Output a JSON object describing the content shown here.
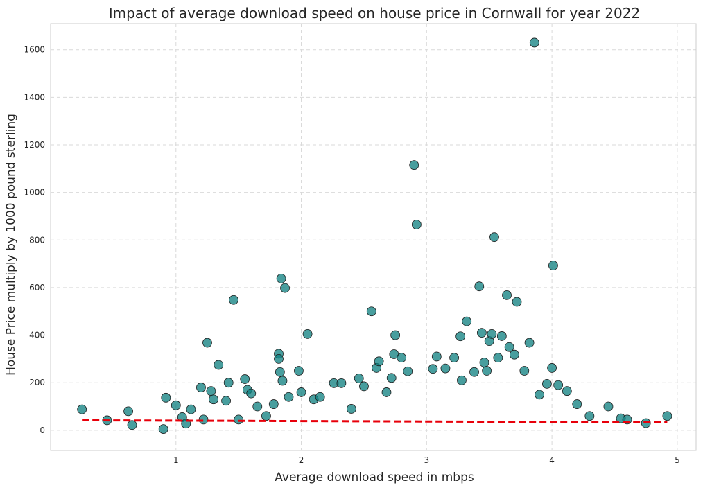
{
  "chart_data": {
    "type": "scatter",
    "title": "Impact of average download speed on house price in Cornwall for year 2022",
    "xlabel": "Average download speed in mbps",
    "ylabel": "House Price multiply by 1000 pound sterling",
    "xlim": [
      0.0,
      5.15
    ],
    "ylim": [
      -85,
      1710
    ],
    "xticks": [
      "1",
      "2",
      "3",
      "4",
      "5"
    ],
    "yticks": [
      "0",
      "200",
      "400",
      "600",
      "800",
      "1000",
      "1200",
      "1400",
      "1600"
    ],
    "grid": true,
    "colors": {
      "marker": "#0b7e7e",
      "marker_edge": "#1e1e1e",
      "trend": "#e8000b"
    },
    "trend_line": {
      "x": [
        0.25,
        4.92
      ],
      "y": [
        42,
        33
      ]
    },
    "x": [
      0.25,
      0.45,
      0.62,
      0.65,
      0.9,
      0.92,
      1.0,
      1.05,
      1.08,
      1.12,
      1.2,
      1.22,
      1.25,
      1.28,
      1.3,
      1.34,
      1.4,
      1.42,
      1.46,
      1.5,
      1.55,
      1.57,
      1.6,
      1.65,
      1.72,
      1.78,
      1.82,
      1.82,
      1.83,
      1.84,
      1.85,
      1.87,
      1.9,
      1.98,
      2.0,
      2.05,
      2.1,
      2.15,
      2.26,
      2.32,
      2.4,
      2.46,
      2.5,
      2.56,
      2.6,
      2.62,
      2.68,
      2.72,
      2.74,
      2.75,
      2.8,
      2.85,
      2.9,
      2.92,
      3.05,
      3.08,
      3.15,
      3.22,
      3.27,
      3.28,
      3.32,
      3.38,
      3.42,
      3.44,
      3.46,
      3.48,
      3.5,
      3.52,
      3.54,
      3.57,
      3.6,
      3.64,
      3.66,
      3.7,
      3.72,
      3.78,
      3.82,
      3.86,
      3.9,
      3.96,
      4.0,
      4.01,
      4.05,
      4.12,
      4.2,
      4.3,
      4.45,
      4.55,
      4.6,
      4.75,
      4.92
    ],
    "y": [
      88,
      42,
      80,
      22,
      5,
      137,
      105,
      55,
      28,
      88,
      180,
      45,
      368,
      165,
      130,
      275,
      124,
      200,
      548,
      45,
      215,
      170,
      155,
      100,
      60,
      110,
      322,
      300,
      245,
      638,
      208,
      598,
      140,
      250,
      160,
      405,
      130,
      140,
      198,
      198,
      90,
      218,
      185,
      500,
      262,
      290,
      160,
      220,
      320,
      400,
      305,
      248,
      1115,
      865,
      258,
      310,
      260,
      305,
      395,
      210,
      458,
      245,
      605,
      410,
      285,
      250,
      375,
      405,
      812,
      305,
      396,
      568,
      350,
      318,
      540,
      250,
      368,
      1630,
      150,
      195,
      262,
      693,
      190,
      165,
      110,
      60,
      100,
      50,
      45,
      30,
      60
    ]
  }
}
